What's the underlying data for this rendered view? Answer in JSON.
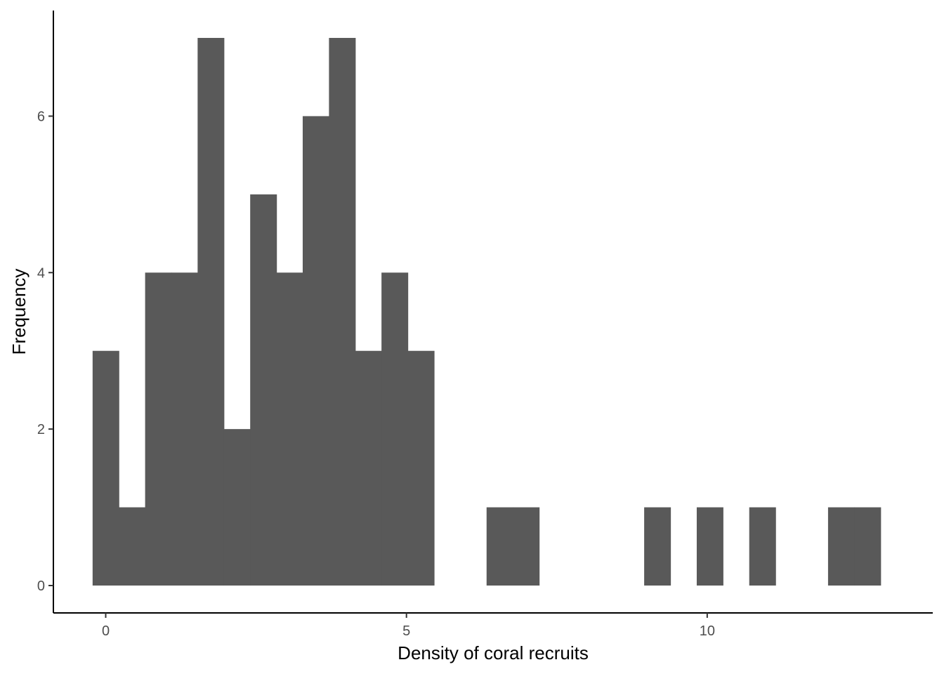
{
  "chart_data": {
    "type": "bar",
    "subtype": "histogram",
    "title": "",
    "xlabel": "Density of coral recruits",
    "ylabel": "Frequency",
    "xlim": [
      -0.87,
      13.75
    ],
    "ylim": [
      -0.35,
      7.35
    ],
    "x_ticks": [
      0,
      5,
      10
    ],
    "y_ticks": [
      0,
      2,
      4,
      6
    ],
    "grid": false,
    "legend": "none",
    "bin_width": 0.4367,
    "bins": [
      {
        "x_start": -0.218,
        "x_end": 0.218,
        "count": 3
      },
      {
        "x_start": 0.218,
        "x_end": 0.655,
        "count": 1
      },
      {
        "x_start": 0.655,
        "x_end": 1.092,
        "count": 4
      },
      {
        "x_start": 1.092,
        "x_end": 1.528,
        "count": 4
      },
      {
        "x_start": 1.528,
        "x_end": 1.965,
        "count": 7
      },
      {
        "x_start": 1.965,
        "x_end": 2.402,
        "count": 2
      },
      {
        "x_start": 2.402,
        "x_end": 2.839,
        "count": 5
      },
      {
        "x_start": 2.839,
        "x_end": 3.275,
        "count": 4
      },
      {
        "x_start": 3.275,
        "x_end": 3.712,
        "count": 6
      },
      {
        "x_start": 3.712,
        "x_end": 4.149,
        "count": 7
      },
      {
        "x_start": 4.149,
        "x_end": 4.585,
        "count": 3
      },
      {
        "x_start": 4.585,
        "x_end": 5.022,
        "count": 4
      },
      {
        "x_start": 5.022,
        "x_end": 5.459,
        "count": 3
      },
      {
        "x_start": 5.459,
        "x_end": 5.895,
        "count": 0
      },
      {
        "x_start": 5.895,
        "x_end": 6.332,
        "count": 0
      },
      {
        "x_start": 6.332,
        "x_end": 6.769,
        "count": 1
      },
      {
        "x_start": 6.769,
        "x_end": 7.206,
        "count": 1
      },
      {
        "x_start": 7.206,
        "x_end": 7.642,
        "count": 0
      },
      {
        "x_start": 7.642,
        "x_end": 8.079,
        "count": 0
      },
      {
        "x_start": 8.079,
        "x_end": 8.516,
        "count": 0
      },
      {
        "x_start": 8.516,
        "x_end": 8.952,
        "count": 0
      },
      {
        "x_start": 8.952,
        "x_end": 9.389,
        "count": 1
      },
      {
        "x_start": 9.389,
        "x_end": 9.826,
        "count": 0
      },
      {
        "x_start": 9.826,
        "x_end": 10.262,
        "count": 1
      },
      {
        "x_start": 10.262,
        "x_end": 10.699,
        "count": 0
      },
      {
        "x_start": 10.699,
        "x_end": 11.136,
        "count": 1
      },
      {
        "x_start": 11.136,
        "x_end": 11.573,
        "count": 0
      },
      {
        "x_start": 11.573,
        "x_end": 12.009,
        "count": 0
      },
      {
        "x_start": 12.009,
        "x_end": 12.446,
        "count": 1
      },
      {
        "x_start": 12.446,
        "x_end": 12.883,
        "count": 1
      }
    ],
    "colors": {
      "bar_fill": "#595959",
      "axis_line": "#000000",
      "tick_label": "#4d4d4d",
      "background": "#ffffff"
    }
  }
}
